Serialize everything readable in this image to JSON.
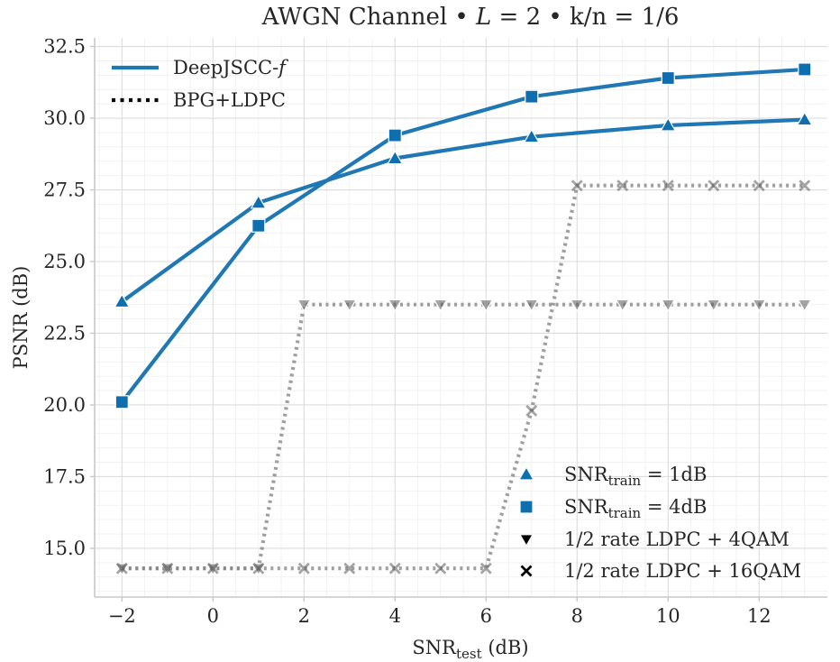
{
  "chart_data": {
    "type": "line",
    "title_parts": {
      "pre": "AWGN Channel • ",
      "var": "L",
      "mid": " = 2 •  k/n = 1/6"
    },
    "xlabel": {
      "main": "SNR",
      "sub": "test",
      "rest": " (dB)"
    },
    "ylabel": "PSNR (dB)",
    "xlim": [
      -2.6,
      13.5
    ],
    "ylim": [
      13.3,
      32.8
    ],
    "xticks": [
      -2,
      0,
      2,
      4,
      6,
      8,
      10,
      12
    ],
    "xtick_labels": [
      "−2",
      "0",
      "2",
      "4",
      "6",
      "8",
      "10",
      "12"
    ],
    "yticks": [
      15.0,
      17.5,
      20.0,
      22.5,
      25.0,
      27.5,
      30.0,
      32.5
    ],
    "ytick_labels": [
      "15.0",
      "17.5",
      "20.0",
      "22.5",
      "25.0",
      "27.5",
      "30.0",
      "32.5"
    ],
    "grid": true,
    "colors": {
      "deepjscc": "#1f77b4",
      "marker_blue": "#0d6fb0",
      "bpg": "#7f7f7f",
      "black": "#000000"
    },
    "series": [
      {
        "group": "DeepJSCC-f",
        "train": "1dB",
        "marker": "triangle-up",
        "x": [
          -2,
          1,
          4,
          7,
          10,
          13
        ],
        "y": [
          23.6,
          27.05,
          28.6,
          29.35,
          29.75,
          29.95
        ]
      },
      {
        "group": "DeepJSCC-f",
        "train": "4dB",
        "marker": "square",
        "x": [
          -2,
          1,
          4,
          7,
          10,
          13
        ],
        "y": [
          20.1,
          26.25,
          29.4,
          30.75,
          31.4,
          31.7
        ]
      },
      {
        "group": "BPG+LDPC",
        "scheme": "1/2 rate LDPC + 4QAM",
        "marker": "triangle-down",
        "x": [
          -2,
          -1,
          0,
          1,
          2,
          3,
          4,
          5,
          6,
          7,
          8,
          9,
          10,
          11,
          12,
          13
        ],
        "y": [
          14.3,
          14.3,
          14.3,
          14.3,
          23.5,
          23.5,
          23.5,
          23.5,
          23.5,
          23.5,
          23.5,
          23.5,
          23.5,
          23.5,
          23.5,
          23.5
        ]
      },
      {
        "group": "BPG+LDPC",
        "scheme": "1/2 rate LDPC + 16QAM",
        "marker": "x",
        "x": [
          -2,
          -1,
          0,
          1,
          2,
          3,
          4,
          5,
          6,
          7,
          8,
          9,
          10,
          11,
          12,
          13
        ],
        "y": [
          14.3,
          14.3,
          14.3,
          14.3,
          14.3,
          14.3,
          14.3,
          14.3,
          14.3,
          19.8,
          27.65,
          27.65,
          27.65,
          27.65,
          27.65,
          27.65
        ]
      }
    ],
    "legend_style": [
      {
        "label_main": "DeepJSCC-",
        "label_italic": "f",
        "style": "solid"
      },
      {
        "label": "BPG+LDPC",
        "style": "dotted"
      }
    ],
    "legend_marker": [
      {
        "marker": "triangle-up",
        "pre": "SNR",
        "sub": "train",
        "post": " = 1dB"
      },
      {
        "marker": "square",
        "pre": "SNR",
        "sub": "train",
        "post": " = 4dB"
      },
      {
        "marker": "triangle-down",
        "label": "1/2 rate LDPC + 4QAM"
      },
      {
        "marker": "x",
        "label": "1/2 rate LDPC + 16QAM"
      }
    ],
    "legend_positions": {
      "style": "top-left",
      "marker": "bottom-right"
    }
  }
}
